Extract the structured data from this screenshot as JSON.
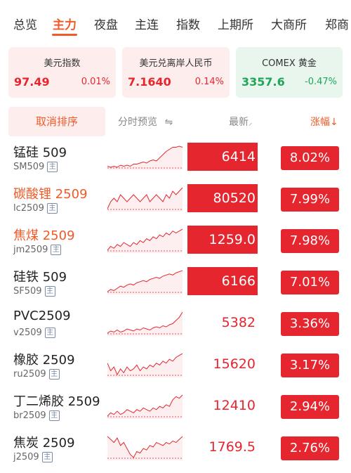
{
  "tabs": [
    "总览",
    "主力",
    "夜盘",
    "主连",
    "指数",
    "上期所",
    "大商所",
    "郑商"
  ],
  "active_tab": 1,
  "indices": [
    {
      "title": "美元指数",
      "value": "97.49",
      "change": "0.01%",
      "tone": "red"
    },
    {
      "title": "美元兑离岸人民币",
      "value": "7.1640",
      "change": "0.14%",
      "tone": "red"
    },
    {
      "title": "COMEX 黄金",
      "value": "3357.6",
      "change": "-0.47%",
      "tone": "green"
    }
  ],
  "header": {
    "sort_button": "取消排序",
    "preview_label": "分时预览",
    "preview_icon": "⇋",
    "latest_label": "最新",
    "latest_icon": "⸝",
    "change_label": "涨幅",
    "change_icon": "↓"
  },
  "badge_label": "主",
  "rows": [
    {
      "name": "锰硅 509",
      "code": "SM509",
      "price": "6414",
      "change": "8.02%",
      "highlight": false,
      "price_filled": true,
      "spark": [
        12,
        11,
        12,
        11,
        13,
        12,
        13,
        12,
        14,
        14,
        15,
        16,
        15,
        17,
        18,
        17,
        20,
        23,
        26,
        28,
        30,
        30,
        31,
        30
      ]
    },
    {
      "name": "碳酸锂 2509",
      "code": "lc2509",
      "price": "80520",
      "change": "7.99%",
      "highlight": true,
      "price_filled": true,
      "spark": [
        22,
        24,
        25,
        24,
        26,
        25,
        24,
        25,
        26,
        25,
        24,
        25,
        26,
        24,
        25,
        26,
        25,
        24,
        26,
        25,
        27,
        26,
        27,
        28
      ]
    },
    {
      "name": "焦煤 2509",
      "code": "jm2509",
      "price": "1259.0",
      "change": "7.98%",
      "highlight": true,
      "price_filled": true,
      "spark": [
        18,
        20,
        19,
        21,
        20,
        22,
        21,
        20,
        22,
        21,
        23,
        22,
        24,
        23,
        25,
        24,
        26,
        25,
        27,
        26,
        28,
        27,
        28,
        29
      ]
    },
    {
      "name": "硅铁 509",
      "code": "SF509",
      "price": "6166",
      "change": "7.01%",
      "highlight": false,
      "price_filled": true,
      "spark": [
        10,
        12,
        11,
        13,
        15,
        14,
        16,
        17,
        16,
        18,
        19,
        20,
        19,
        21,
        22,
        23,
        22,
        24,
        25,
        26,
        25,
        27,
        28,
        29
      ]
    },
    {
      "name": "PVC2509",
      "code": "v2509",
      "price": "5382",
      "change": "3.36%",
      "highlight": false,
      "price_filled": false,
      "spark": [
        10,
        12,
        11,
        13,
        11,
        12,
        14,
        13,
        12,
        14,
        13,
        15,
        14,
        13,
        15,
        16,
        15,
        17,
        16,
        18,
        19,
        22,
        25,
        30
      ]
    },
    {
      "name": "橡胶 2509",
      "code": "ru2509",
      "price": "15620",
      "change": "3.17%",
      "highlight": false,
      "price_filled": false,
      "spark": [
        22,
        18,
        20,
        16,
        19,
        17,
        20,
        18,
        19,
        21,
        18,
        20,
        19,
        21,
        20,
        22,
        21,
        23,
        22,
        24,
        23,
        25,
        26,
        27
      ]
    },
    {
      "name": "丁二烯胶 2509",
      "code": "br2509",
      "price": "12410",
      "change": "2.94%",
      "highlight": false,
      "price_filled": false,
      "spark": [
        14,
        16,
        15,
        17,
        15,
        16,
        18,
        17,
        16,
        18,
        17,
        19,
        18,
        17,
        19,
        18,
        20,
        19,
        21,
        20,
        24,
        26,
        25,
        27
      ]
    },
    {
      "name": "焦炭 2509",
      "code": "j2509",
      "price": "1769.5",
      "change": "2.76%",
      "highlight": false,
      "price_filled": false,
      "spark": [
        26,
        24,
        22,
        25,
        20,
        22,
        18,
        14,
        12,
        16,
        15,
        18,
        17,
        20,
        19,
        22,
        21,
        20,
        22,
        21,
        23,
        22,
        24,
        26
      ]
    }
  ],
  "colors": {
    "up": "#e6262e",
    "down": "#1fa65a",
    "accent": "#f05a28"
  }
}
